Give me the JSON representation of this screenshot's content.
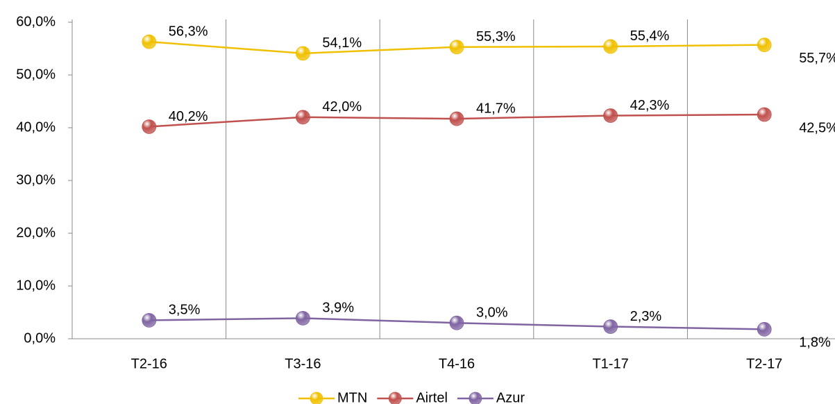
{
  "chart_data": {
    "type": "line",
    "categories": [
      "T2-16",
      "T3-16",
      "T4-16",
      "T1-17",
      "T2-17"
    ],
    "series": [
      {
        "name": "MTN",
        "color": "#f0c000",
        "values": [
          56.3,
          54.1,
          55.3,
          55.4,
          55.7
        ],
        "value_labels": [
          "56,3%",
          "54,1%",
          "55,3%",
          "55,4%",
          "55,7%"
        ]
      },
      {
        "name": "Airtel",
        "color": "#c0504d",
        "values": [
          40.2,
          42.0,
          41.7,
          42.3,
          42.5
        ],
        "value_labels": [
          "40,2%",
          "42,0%",
          "41,7%",
          "42,3%",
          "42,5%"
        ]
      },
      {
        "name": "Azur",
        "color": "#8064a2",
        "values": [
          3.5,
          3.9,
          3.0,
          2.3,
          1.8
        ],
        "value_labels": [
          "3,5%",
          "3,9%",
          "3,0%",
          "2,3%",
          "1,8%"
        ]
      }
    ],
    "ylim": [
      0,
      60
    ],
    "yticks": [
      {
        "value": 0,
        "label": "0,0%"
      },
      {
        "value": 10,
        "label": "10,0%"
      },
      {
        "value": 20,
        "label": "20,0%"
      },
      {
        "value": 30,
        "label": "30,0%"
      },
      {
        "value": 40,
        "label": "40,0%"
      },
      {
        "value": 50,
        "label": "50,0%"
      },
      {
        "value": 60,
        "label": "60,0%"
      }
    ],
    "legend": "bottom"
  }
}
